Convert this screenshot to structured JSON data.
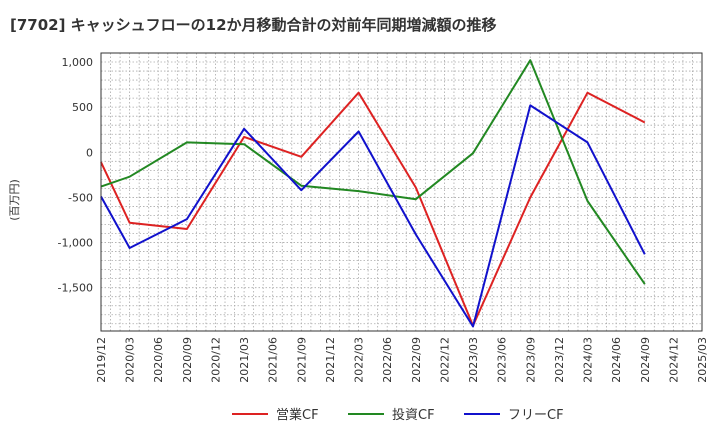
{
  "chart_data": {
    "type": "line",
    "title": "[7702]  キャッシュフローの12か月移動合計の対前年同期増減額の推移",
    "ylabel": "(百万円)",
    "xlabel": "",
    "ylim": [
      -1980,
      1100
    ],
    "y_ticks": [
      1000,
      500,
      0,
      -500,
      -1000,
      -1500
    ],
    "y_tick_labels": [
      "1,000",
      "500",
      "0",
      "-500",
      "-1,000",
      "-1,500"
    ],
    "x": [
      "2019/12",
      "2020/03",
      "2020/06",
      "2020/09",
      "2020/12",
      "2021/03",
      "2021/06",
      "2021/09",
      "2021/12",
      "2022/03",
      "2022/06",
      "2022/09",
      "2022/12",
      "2023/03",
      "2023/06",
      "2023/09",
      "2023/12",
      "2024/03",
      "2024/06",
      "2024/09",
      "2024/12",
      "2025/03"
    ],
    "grid": true,
    "legend_position": "bottom",
    "series": [
      {
        "name": "営業CF",
        "color": "#dd2222",
        "values": [
          -110,
          -780,
          null,
          -850,
          null,
          170,
          null,
          -50,
          null,
          660,
          null,
          -390,
          null,
          -1920,
          null,
          -500,
          null,
          660,
          null,
          330,
          null,
          null
        ]
      },
      {
        "name": "投資CF",
        "color": "#228822",
        "values": [
          -380,
          -270,
          null,
          110,
          null,
          90,
          null,
          -370,
          null,
          -430,
          null,
          -520,
          null,
          -10,
          null,
          1020,
          null,
          -540,
          null,
          -1460,
          null,
          null
        ]
      },
      {
        "name": "フリーCF",
        "color": "#1111cc",
        "values": [
          -490,
          -1060,
          null,
          -740,
          null,
          260,
          null,
          -420,
          null,
          230,
          null,
          -910,
          null,
          -1930,
          null,
          520,
          null,
          110,
          null,
          -1130,
          null,
          null
        ]
      }
    ]
  }
}
